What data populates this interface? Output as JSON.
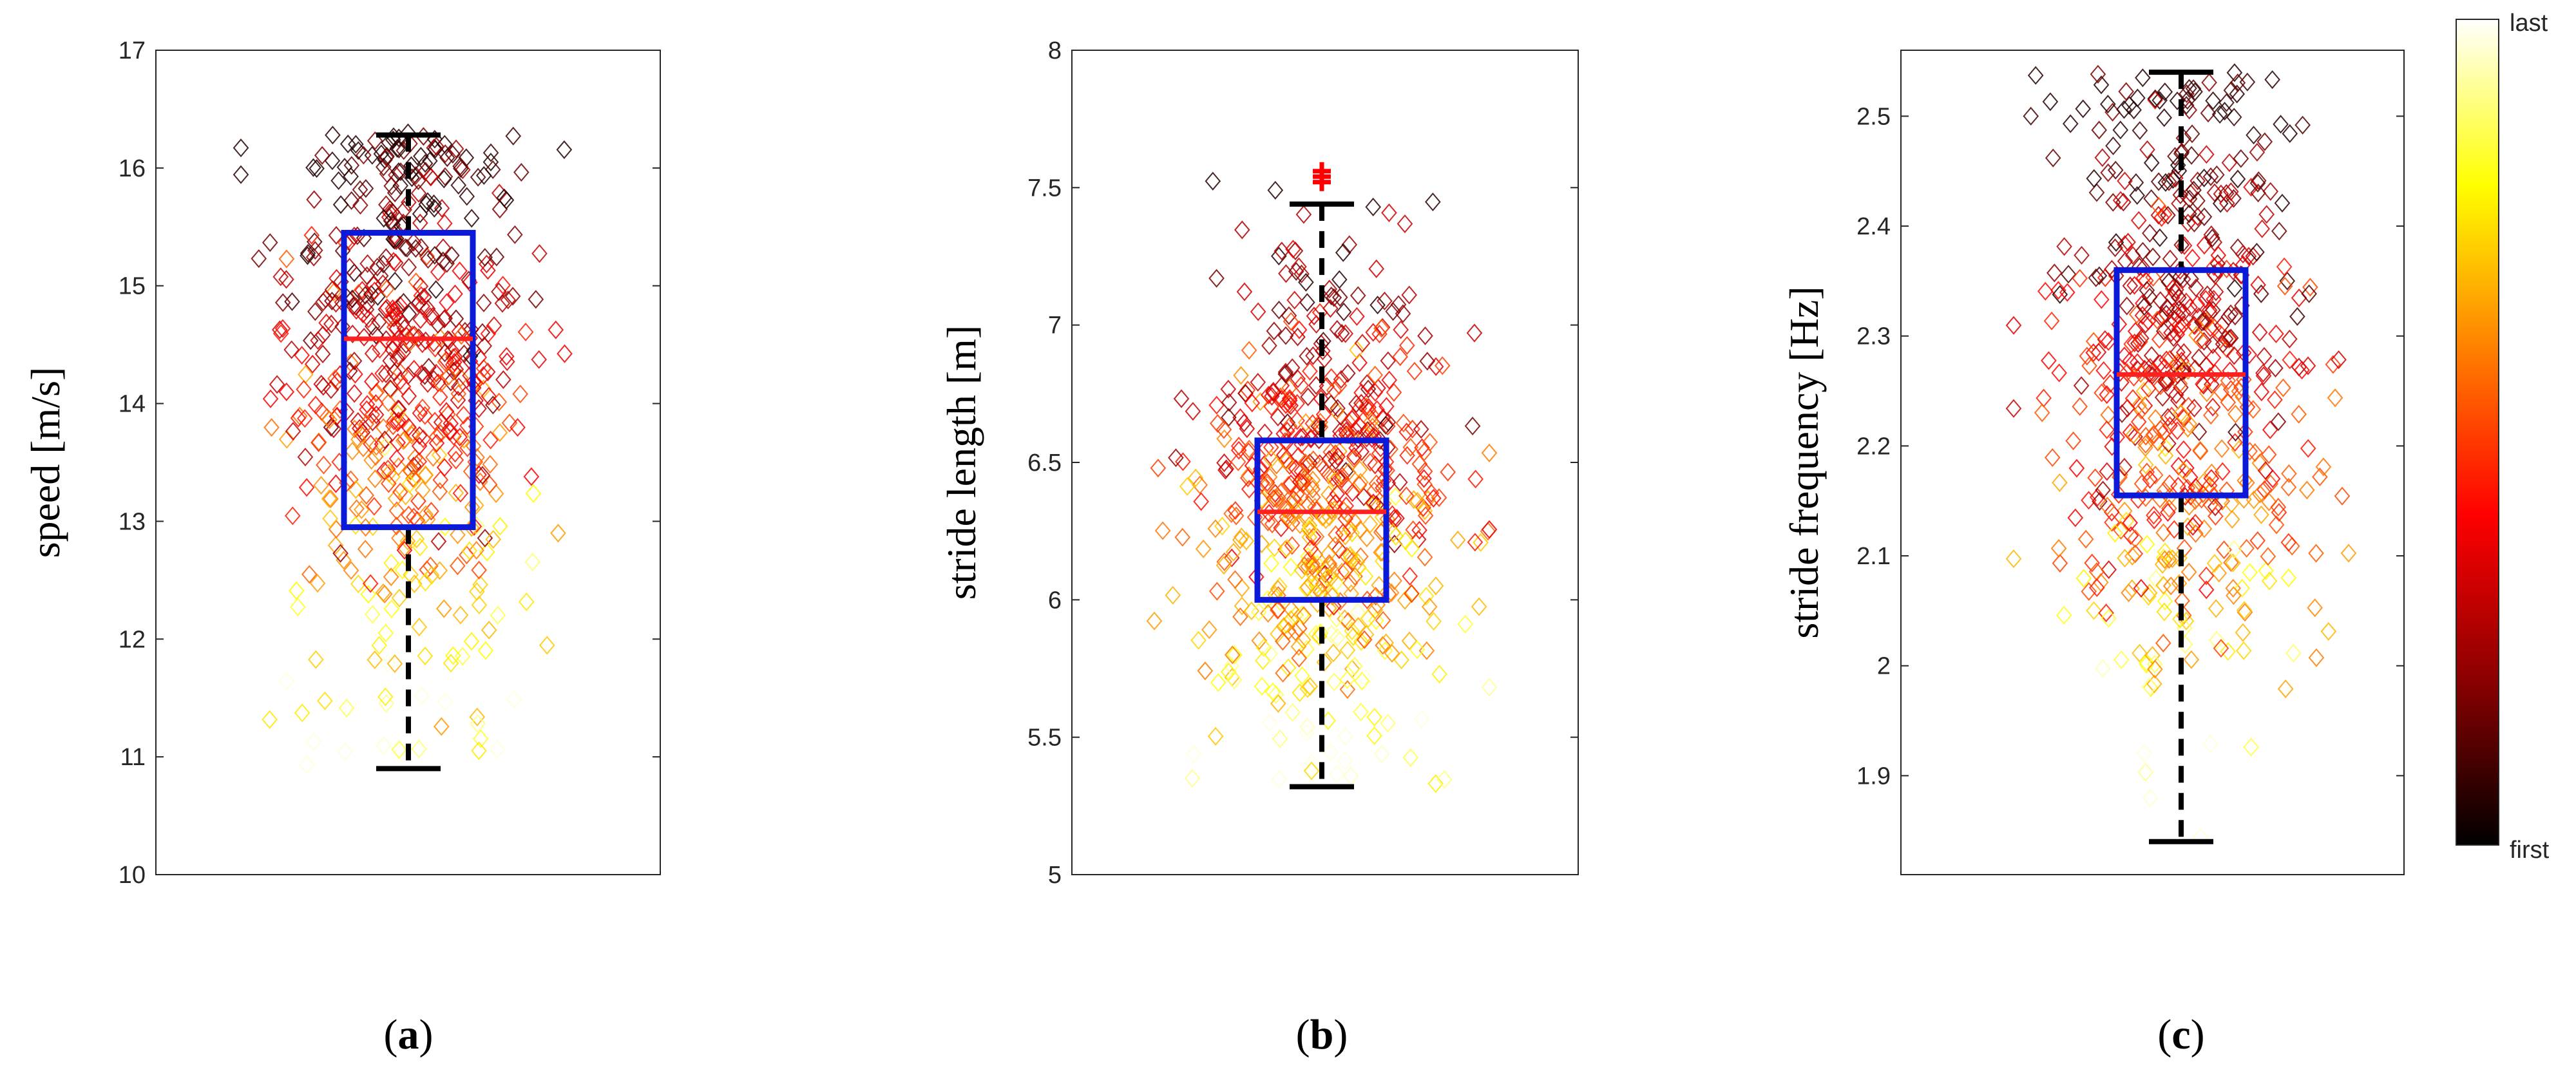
{
  "chart_data": [
    {
      "type": "box",
      "panel_label_prefix": "(",
      "panel_label_letter": "a",
      "panel_label_suffix": ")",
      "ylabel": "speed [m/s]",
      "ylim": [
        10,
        17
      ],
      "yticks": [
        10,
        11,
        12,
        13,
        14,
        15,
        16,
        17
      ],
      "box": {
        "min": 10.9,
        "q1": 12.95,
        "median": 14.55,
        "q3": 15.45,
        "max": 16.28
      },
      "outliers": [],
      "scatter": {
        "center": 14.2,
        "spread": 1.3,
        "low": 10.9,
        "high": 16.3,
        "count": 620
      }
    },
    {
      "type": "box",
      "panel_label_prefix": "(",
      "panel_label_letter": "b",
      "panel_label_suffix": ")",
      "ylabel": "stride length [m]",
      "ylim": [
        5,
        8
      ],
      "yticks": [
        5,
        5.5,
        6,
        6.5,
        7,
        7.5,
        8
      ],
      "box": {
        "min": 5.32,
        "q1": 6.0,
        "median": 6.32,
        "q3": 6.58,
        "max": 7.44
      },
      "outliers": [
        7.52,
        7.54,
        7.56
      ],
      "scatter": {
        "center": 6.35,
        "spread": 0.42,
        "low": 5.32,
        "high": 7.55,
        "count": 620
      }
    },
    {
      "type": "box",
      "panel_label_prefix": "(",
      "panel_label_letter": "c",
      "panel_label_suffix": ")",
      "ylabel": "stride frequency [Hz]",
      "ylim": [
        1.81,
        2.56
      ],
      "yticks": [
        1.9,
        2,
        2.1,
        2.2,
        2.3,
        2.4,
        2.5
      ],
      "box": {
        "min": 1.84,
        "q1": 2.155,
        "median": 2.265,
        "q3": 2.36,
        "max": 2.54
      },
      "outliers": [],
      "scatter": {
        "center": 2.26,
        "spread": 0.14,
        "low": 1.84,
        "high": 2.54,
        "count": 620
      }
    }
  ],
  "colorbar": {
    "top_label": "last",
    "bottom_label": "first",
    "colormap": [
      "#000000",
      "#8b0000",
      "#ff0000",
      "#ff8c00",
      "#ffff00",
      "#ffffff"
    ]
  },
  "colors": {
    "box": "#0a1ad8",
    "median": "#ff2020",
    "whisker": "#000000",
    "outlier": "#ff0000",
    "axes": "#262626"
  }
}
